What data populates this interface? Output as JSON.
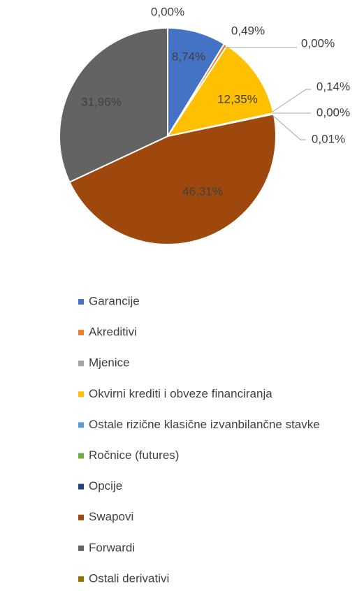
{
  "chart_data": {
    "type": "pie",
    "categories": [
      "Garancije",
      "Akreditivi",
      "Mjenice",
      "Okvirni krediti i obveze financiranja",
      "Ostale rizične klasične izvanbilančne stavke",
      "Ročnice (futures)",
      "Opcije",
      "Swapovi",
      "Forwardi",
      "Ostali derivativi"
    ],
    "values": [
      8.74,
      0.49,
      0.0,
      12.35,
      0.14,
      0.0,
      0.01,
      46.31,
      31.96,
      0.0
    ],
    "value_labels": [
      "8,74%",
      "0,49%",
      "0,00%",
      "12,35%",
      "0,14%",
      "0,00%",
      "0,01%",
      "46,31%",
      "31,96%",
      "0,00%"
    ],
    "colors": [
      "#4472c4",
      "#ed7d31",
      "#a5a5a5",
      "#ffc000",
      "#5b9bd5",
      "#70ad47",
      "#264478",
      "#9e480e",
      "#636363",
      "#997300"
    ],
    "legend": "bottom"
  }
}
